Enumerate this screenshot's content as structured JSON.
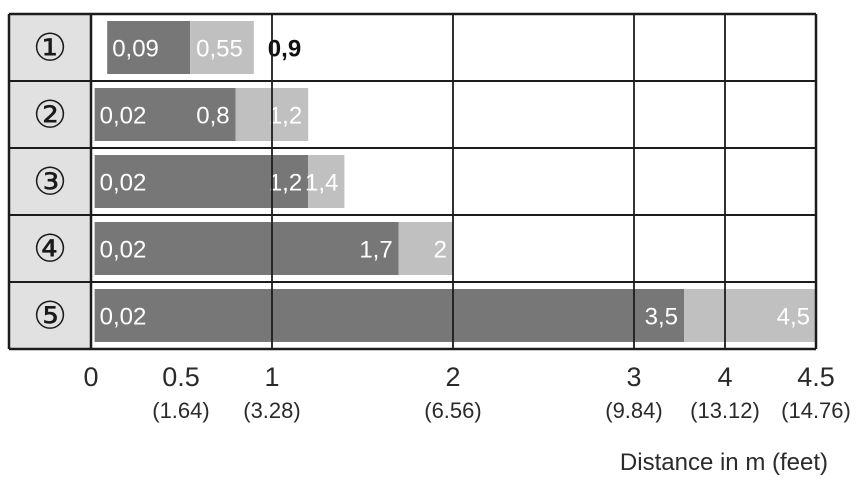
{
  "chart_data": {
    "type": "bar",
    "subtype": "stacked-horizontal-range",
    "categories": [
      "①",
      "②",
      "③",
      "④",
      "⑤"
    ],
    "rows": [
      {
        "start": "0,09",
        "mid": "0,55",
        "end": "0,9",
        "start_v": 0.09,
        "mid_v": 0.55,
        "end_v": 0.9
      },
      {
        "start": "0,02",
        "mid": "0,8",
        "end": "1,2",
        "start_v": 0.02,
        "mid_v": 0.8,
        "end_v": 1.2
      },
      {
        "start": "0,02",
        "mid": "1,2",
        "end": "1,4",
        "start_v": 0.02,
        "mid_v": 1.2,
        "end_v": 1.4
      },
      {
        "start": "0,02",
        "mid": "1,7",
        "end": "2",
        "start_v": 0.02,
        "mid_v": 1.7,
        "end_v": 2.0
      },
      {
        "start": "0,02",
        "mid": "3,5",
        "end": "4,5",
        "start_v": 0.02,
        "mid_v": 3.5,
        "end_v": 4.5
      }
    ],
    "x_ticks": [
      {
        "value": 0,
        "label": "0",
        "sub": ""
      },
      {
        "value": 0.5,
        "label": "0.5",
        "sub": "(1.64)"
      },
      {
        "value": 1,
        "label": "1",
        "sub": "(3.28)"
      },
      {
        "value": 2,
        "label": "2",
        "sub": "(6.56)"
      },
      {
        "value": 3,
        "label": "3",
        "sub": "(9.84)"
      },
      {
        "value": 4,
        "label": "4",
        "sub": "(13.12)"
      },
      {
        "value": 4.5,
        "label": "4.5",
        "sub": "(14.76)"
      }
    ],
    "gridlines": [
      1,
      2,
      3,
      3.5,
      4
    ],
    "xlabel": "Distance in m (feet)",
    "colors": {
      "dark": "#777777",
      "light": "#c0c0c0",
      "label_column": "#e1e1e1",
      "grid": "#1c1c1c"
    }
  }
}
